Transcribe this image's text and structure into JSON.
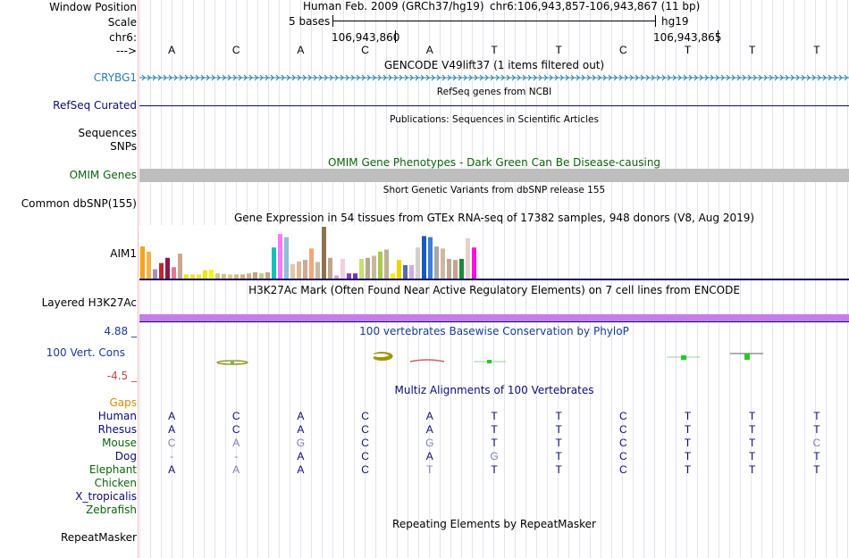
{
  "colors": {
    "gencode": "#2a7fa5",
    "refseq": "#0c0c78",
    "omim": "#0c640c",
    "omim_bar": "#bebebe",
    "h3k27ac_bar": "#c57ee9",
    "phylop": "#1a3a9a",
    "phylop_low": "#b84a4a",
    "gaps": "#de8a00",
    "species": "#0c0c78",
    "species_green": "#0c640c",
    "faded_base": "#8080b0"
  },
  "header": {
    "window_position_label": "Window Position",
    "scale_label": "Scale",
    "chr_label": "chr6:",
    "arrow_label": "--->",
    "assembly_text": "Human Feb. 2009 (GRCh37/hg19)",
    "position_text": "chr6:106,943,857-106,943,867 (11 bp)",
    "scale_text": "5 bases",
    "hg_label": "hg19",
    "coord_1": "106,943,860",
    "coord_2": "106,943,865",
    "bases": [
      "A",
      "C",
      "A",
      "C",
      "A",
      "T",
      "T",
      "C",
      "T",
      "T",
      "T"
    ]
  },
  "tracks": {
    "gencode_title": "GENCODE V49lift37 (1 items filtered out)",
    "gencode_gene": "CRYBG1",
    "refseq_title": "RefSeq genes from NCBI",
    "refseq_label": "RefSeq Curated",
    "publications_title": "Publications: Sequences in Scientific Articles",
    "sequences_label": "Sequences",
    "snps_label": "SNPs",
    "omim_title": "OMIM Gene Phenotypes - Dark Green Can Be Disease-causing",
    "omim_label": "OMIM Genes",
    "dbsnp_title": "Short Genetic Variants from dbSNP release 155",
    "dbsnp_label": "Common dbSNP(155)",
    "gtex_title": "Gene Expression in 54 tissues from GTEx RNA-seq of 17382 samples, 948 donors (V8, Aug 2019)",
    "gtex_label": "AIM1",
    "h3k27ac_title": "H3K27Ac Mark (Often Found Near Active Regulatory Elements) on 7 cell lines from ENCODE",
    "h3k27ac_label": "Layered H3K27Ac",
    "phylop_title": "100 vertebrates Basewise Conservation by PhyloP",
    "phylop_label": "100 Vert. Cons",
    "phylop_max": "4.88 _",
    "phylop_min": "-4.5 _",
    "multiz_title": "Multiz Alignments of 100 Vertebrates",
    "gaps_label": "Gaps",
    "repeat_title": "Repeating Elements by RepeatMasker",
    "repeat_label": "RepeatMasker"
  },
  "gtex_expression": [
    {
      "v": 0.62,
      "c": "#f3a21b"
    },
    {
      "v": 0.52,
      "c": "#f2b24a"
    },
    {
      "v": 0.18,
      "c": "#a68fbf"
    },
    {
      "v": 0.3,
      "c": "#c0282d"
    },
    {
      "v": 0.4,
      "c": "#8b1a4a"
    },
    {
      "v": 0.22,
      "c": "#e07b90"
    },
    {
      "v": 0.48,
      "c": "#c9a88b"
    },
    {
      "v": 0.08,
      "c": "#e8e800"
    },
    {
      "v": 0.08,
      "c": "#f0e040"
    },
    {
      "v": 0.08,
      "c": "#f6e83a"
    },
    {
      "v": 0.16,
      "c": "#eaea00"
    },
    {
      "v": 0.17,
      "c": "#f5f510"
    },
    {
      "v": 0.1,
      "c": "#d8c490"
    },
    {
      "v": 0.09,
      "c": "#d6c08a"
    },
    {
      "v": 0.08,
      "c": "#e0c88f"
    },
    {
      "v": 0.08,
      "c": "#d2bc86"
    },
    {
      "v": 0.08,
      "c": "#ccb480"
    },
    {
      "v": 0.1,
      "c": "#cfb486"
    },
    {
      "v": 0.12,
      "c": "#bfa67a"
    },
    {
      "v": 0.1,
      "c": "#d8bf90"
    },
    {
      "v": 0.12,
      "c": "#c4a87c"
    },
    {
      "v": 0.6,
      "c": "#15c0b8"
    },
    {
      "v": 0.86,
      "c": "#ff77ff"
    },
    {
      "v": 0.8,
      "c": "#8fbfd8"
    },
    {
      "v": 0.28,
      "c": "#e0c8a8"
    },
    {
      "v": 0.33,
      "c": "#dbb89a"
    },
    {
      "v": 0.36,
      "c": "#d5a896"
    },
    {
      "v": 0.58,
      "c": "#f0a87a"
    },
    {
      "v": 0.32,
      "c": "#c9b8a0"
    },
    {
      "v": 1.0,
      "c": "#8b7350"
    },
    {
      "v": 0.4,
      "c": "#c2a48c"
    },
    {
      "v": 0.06,
      "c": "#c8a8e0"
    },
    {
      "v": 0.38,
      "c": "#f0d0e0"
    },
    {
      "v": 0.1,
      "c": "#8b39b8"
    },
    {
      "v": 0.1,
      "c": "#7a33b0"
    },
    {
      "v": 0.38,
      "c": "#c8e070"
    },
    {
      "v": 0.4,
      "c": "#b8a890"
    },
    {
      "v": 0.44,
      "c": "#c8b89a"
    },
    {
      "v": 0.52,
      "c": "#a8c850"
    },
    {
      "v": 0.56,
      "c": "#c0b090"
    },
    {
      "v": 0.1,
      "c": "#f0f000"
    },
    {
      "v": 0.36,
      "c": "#f0d400"
    },
    {
      "v": 0.26,
      "c": "#5a6ab0"
    },
    {
      "v": 0.26,
      "c": "#c8b0e0"
    },
    {
      "v": 0.6,
      "c": "#d6d0c8"
    },
    {
      "v": 0.82,
      "c": "#1a5ab8"
    },
    {
      "v": 0.8,
      "c": "#3a80d8"
    },
    {
      "v": 0.62,
      "c": "#a8a8a8"
    },
    {
      "v": 0.58,
      "c": "#d0b8a0"
    },
    {
      "v": 0.38,
      "c": "#bfa890"
    },
    {
      "v": 0.36,
      "c": "#c4a48a"
    },
    {
      "v": 0.38,
      "c": "#1a8a3a"
    },
    {
      "v": 0.78,
      "c": "#e8d0c8"
    },
    {
      "v": 0.6,
      "c": "#ff10e0"
    }
  ],
  "multiz": {
    "species": [
      {
        "name": "Human",
        "color": "#0c0c78",
        "bases": [
          "A",
          "C",
          "A",
          "C",
          "A",
          "T",
          "T",
          "C",
          "T",
          "T",
          "T"
        ],
        "faded": []
      },
      {
        "name": "Rhesus",
        "color": "#0c0c78",
        "bases": [
          "A",
          "C",
          "A",
          "C",
          "A",
          "T",
          "T",
          "C",
          "T",
          "T",
          "T"
        ],
        "faded": []
      },
      {
        "name": "Mouse",
        "color": "#0c640c",
        "bases": [
          "C",
          "A",
          "G",
          "C",
          "G",
          "T",
          "T",
          "C",
          "T",
          "T",
          "C"
        ],
        "faded": [
          0,
          1,
          2,
          4,
          10
        ]
      },
      {
        "name": "Dog",
        "color": "#0c0c78",
        "bases": [
          "-",
          "-",
          "A",
          "C",
          "A",
          "G",
          "T",
          "C",
          "T",
          "T",
          "T"
        ],
        "faded": [
          0,
          1,
          5
        ]
      },
      {
        "name": "Elephant",
        "color": "#0c640c",
        "bases": [
          "A",
          "A",
          "A",
          "C",
          "T",
          "T",
          "T",
          "C",
          "T",
          "T",
          "T"
        ],
        "faded": [
          1,
          4
        ]
      },
      {
        "name": "Chicken",
        "color": "#0c640c",
        "bases": [],
        "faded": []
      },
      {
        "name": "X_tropicalis",
        "color": "#0c0c78",
        "bases": [],
        "faded": []
      },
      {
        "name": "Zebrafish",
        "color": "#0c640c",
        "bases": [],
        "faded": []
      }
    ]
  }
}
